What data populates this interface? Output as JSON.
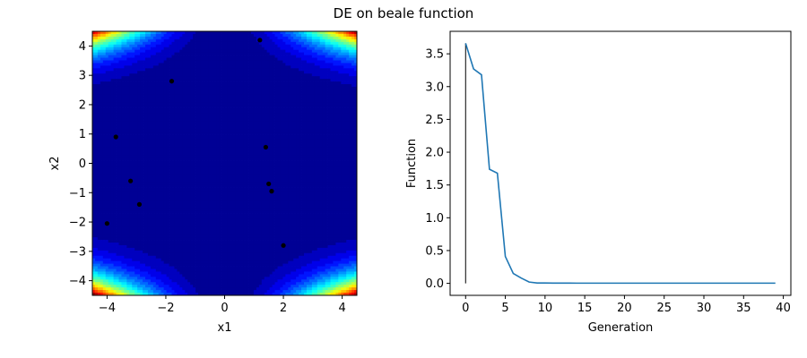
{
  "title": "DE on beale function",
  "chart_data": [
    {
      "type": "contour",
      "function": "beale",
      "colormap": "jet",
      "xlabel": "x1",
      "ylabel": "x2",
      "xlim": [
        -4.5,
        4.5
      ],
      "ylim": [
        -4.5,
        4.5
      ],
      "xticks": [
        "−4",
        "−2",
        "0",
        "2",
        "4"
      ],
      "yticks": [
        "−4",
        "−3",
        "−2",
        "−1",
        "0",
        "1",
        "2",
        "3",
        "4"
      ],
      "points": [
        {
          "x": 1.2,
          "y": 4.2
        },
        {
          "x": -1.8,
          "y": 2.8
        },
        {
          "x": -3.7,
          "y": 0.9
        },
        {
          "x": 1.4,
          "y": 0.55
        },
        {
          "x": -3.2,
          "y": -0.6
        },
        {
          "x": 1.5,
          "y": -0.7
        },
        {
          "x": 1.6,
          "y": -0.95
        },
        {
          "x": -2.9,
          "y": -1.4
        },
        {
          "x": -4.0,
          "y": -2.05
        },
        {
          "x": 2.0,
          "y": -2.8
        }
      ],
      "point_color": "#000000"
    },
    {
      "type": "line",
      "xlabel": "Generation",
      "ylabel": "Function",
      "xlim": [
        -1.95,
        40.95
      ],
      "ylim": [
        -0.183,
        3.843
      ],
      "xticks": [
        "0",
        "5",
        "10",
        "15",
        "20",
        "25",
        "30",
        "35",
        "40"
      ],
      "yticks": [
        "0.0",
        "0.5",
        "1.0",
        "1.5",
        "2.0",
        "2.5",
        "3.0",
        "3.5"
      ],
      "series": [
        {
          "color": "#1f77b4",
          "x": [
            0,
            1,
            2,
            3,
            4,
            5,
            6,
            7,
            8,
            9,
            10,
            11,
            12,
            13,
            14,
            15,
            16,
            17,
            18,
            19,
            20,
            21,
            22,
            23,
            24,
            25,
            26,
            27,
            28,
            29,
            30,
            31,
            32,
            33,
            34,
            35,
            36,
            37,
            38,
            39
          ],
          "values": [
            3.66,
            3.27,
            3.18,
            1.74,
            1.68,
            0.41,
            0.15,
            0.08,
            0.02,
            0.005,
            0.005,
            0.004,
            0.004,
            0.004,
            0.003,
            0.003,
            0.003,
            0.003,
            0.003,
            0.003,
            0.003,
            0.003,
            0.003,
            0.003,
            0.003,
            0.003,
            0.003,
            0.003,
            0.003,
            0.003,
            0.003,
            0.003,
            0.003,
            0.003,
            0.003,
            0.003,
            0.003,
            0.003,
            0.003,
            0.003
          ]
        }
      ],
      "vline": {
        "x": 0,
        "ymin": 0.0,
        "ymax": 3.66,
        "color": "#000000"
      }
    }
  ]
}
